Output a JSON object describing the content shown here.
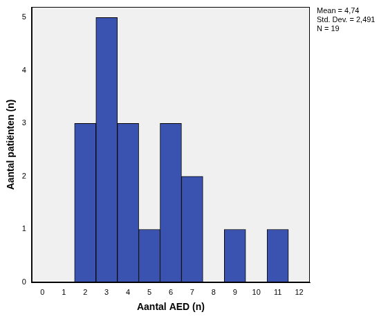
{
  "chart_data": {
    "type": "histogram",
    "x_label": "Aantal AED (n)",
    "y_label": "Aantal patiënten (n)",
    "bins": [
      1.5,
      2.5,
      3.5,
      4.5,
      5.5,
      6.5,
      7.5,
      8.5,
      9.5,
      10.5,
      11.5
    ],
    "values": [
      3,
      5,
      3,
      1,
      3,
      2,
      0,
      1,
      0,
      1
    ],
    "color": "#3b53b0",
    "xlim": [
      -0.5,
      12.5
    ],
    "xticks": [
      0,
      1,
      2,
      3,
      4,
      5,
      6,
      7,
      8,
      9,
      10,
      11,
      12
    ],
    "ylim": [
      0,
      5.2
    ],
    "yticks": [
      0,
      1,
      2,
      3,
      4,
      5
    ],
    "grid": false,
    "annotations": [
      "Mean = 4,74",
      "Std. Dev. = 2,491",
      "N = 19"
    ]
  }
}
